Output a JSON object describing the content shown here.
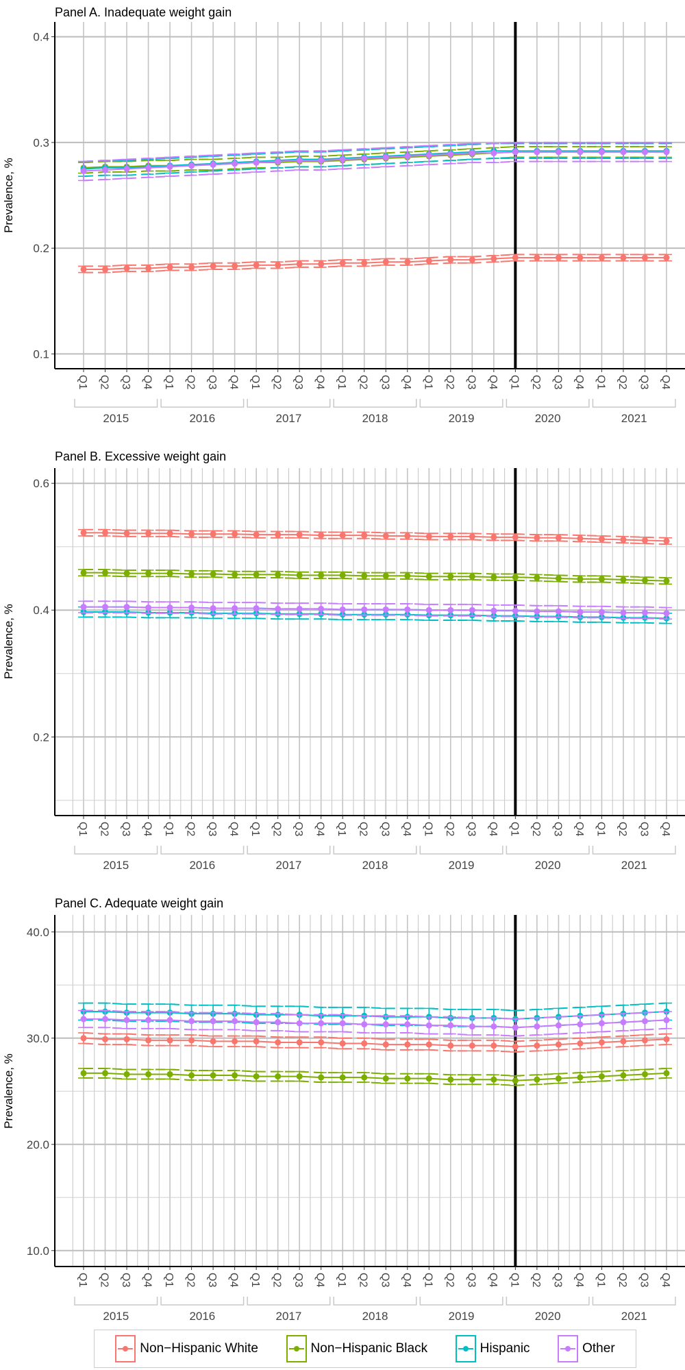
{
  "colors": {
    "Non-Hispanic White": "#F8766D",
    "Non-Hispanic Black": "#7CAE00",
    "Hispanic": "#00BFC4",
    "Other": "#C77CFF",
    "reference_line": "#000000"
  },
  "legend": {
    "items": [
      "Non−Hispanic White",
      "Non−Hispanic Black",
      "Hispanic",
      "Other"
    ],
    "position": "bottom"
  },
  "chart_data": [
    {
      "type": "line",
      "title": "Panel A. Inadequate weight gain",
      "ylabel": "Prevalence, %",
      "ylim": [
        0.086,
        0.414
      ],
      "yticks": [
        "0.1",
        "0.2",
        "0.3",
        "0.4"
      ],
      "ytick_values": [
        0.1,
        0.2,
        0.3,
        0.4
      ],
      "yminor": [],
      "grid": true,
      "quarters": [
        "Q1",
        "Q2",
        "Q3",
        "Q4"
      ],
      "years": [
        "2015",
        "2016",
        "2017",
        "2018",
        "2019",
        "2020",
        "2021"
      ],
      "reference_line_at": "2020 Q1",
      "series": [
        {
          "name": "Non-Hispanic White",
          "ci_halfwidth": 0.003,
          "values": [
            0.18,
            0.18,
            0.181,
            0.181,
            0.182,
            0.182,
            0.183,
            0.183,
            0.184,
            0.184,
            0.185,
            0.185,
            0.186,
            0.186,
            0.187,
            0.187,
            0.188,
            0.189,
            0.189,
            0.19,
            0.191,
            0.191,
            0.191,
            0.191,
            0.191,
            0.191,
            0.191,
            0.191
          ]
        },
        {
          "name": "Non-Hispanic Black",
          "ci_halfwidth": 0.005,
          "values": [
            0.276,
            0.277,
            0.277,
            0.278,
            0.278,
            0.279,
            0.279,
            0.28,
            0.281,
            0.281,
            0.282,
            0.282,
            0.283,
            0.284,
            0.285,
            0.286,
            0.287,
            0.288,
            0.289,
            0.29,
            0.291,
            0.291,
            0.291,
            0.291,
            0.291,
            0.291,
            0.291,
            0.291
          ]
        },
        {
          "name": "Hispanic",
          "ci_halfwidth": 0.007,
          "values": [
            0.275,
            0.276,
            0.276,
            0.277,
            0.278,
            0.279,
            0.28,
            0.281,
            0.282,
            0.283,
            0.284,
            0.284,
            0.285,
            0.286,
            0.287,
            0.288,
            0.289,
            0.29,
            0.291,
            0.292,
            0.292,
            0.292,
            0.292,
            0.292,
            0.292,
            0.292,
            0.292,
            0.292
          ]
        },
        {
          "name": "Other",
          "ci_halfwidth": 0.009,
          "values": [
            0.273,
            0.274,
            0.275,
            0.276,
            0.277,
            0.278,
            0.279,
            0.28,
            0.281,
            0.282,
            0.283,
            0.283,
            0.284,
            0.285,
            0.286,
            0.287,
            0.288,
            0.289,
            0.29,
            0.29,
            0.291,
            0.291,
            0.291,
            0.291,
            0.291,
            0.291,
            0.291,
            0.291
          ]
        }
      ]
    },
    {
      "type": "line",
      "title": "Panel B. Excessive weight gain",
      "ylabel": "Prevalence, %",
      "ylim": [
        0.076,
        0.624
      ],
      "yticks": [
        "0.2",
        "0.4",
        "0.6"
      ],
      "ytick_values": [
        0.2,
        0.4,
        0.6
      ],
      "yminor": [
        0.1,
        0.3,
        0.5
      ],
      "grid": true,
      "quarters": [
        "Q1",
        "Q2",
        "Q3",
        "Q4"
      ],
      "years": [
        "2015",
        "2016",
        "2017",
        "2018",
        "2019",
        "2020",
        "2021"
      ],
      "reference_line_at": "2020 Q1",
      "series": [
        {
          "name": "Non-Hispanic White",
          "ci_halfwidth": 0.005,
          "values": [
            0.522,
            0.522,
            0.521,
            0.521,
            0.521,
            0.52,
            0.52,
            0.52,
            0.519,
            0.519,
            0.519,
            0.518,
            0.518,
            0.518,
            0.517,
            0.517,
            0.516,
            0.516,
            0.516,
            0.515,
            0.515,
            0.514,
            0.514,
            0.513,
            0.512,
            0.511,
            0.51,
            0.509
          ]
        },
        {
          "name": "Non-Hispanic Black",
          "ci_halfwidth": 0.005,
          "values": [
            0.459,
            0.459,
            0.458,
            0.458,
            0.458,
            0.457,
            0.457,
            0.456,
            0.456,
            0.456,
            0.455,
            0.455,
            0.455,
            0.454,
            0.454,
            0.454,
            0.453,
            0.453,
            0.453,
            0.452,
            0.452,
            0.451,
            0.45,
            0.449,
            0.449,
            0.448,
            0.447,
            0.446
          ]
        },
        {
          "name": "Hispanic",
          "ci_halfwidth": 0.008,
          "values": [
            0.397,
            0.397,
            0.397,
            0.396,
            0.396,
            0.396,
            0.395,
            0.395,
            0.395,
            0.394,
            0.394,
            0.394,
            0.393,
            0.393,
            0.393,
            0.393,
            0.392,
            0.392,
            0.392,
            0.391,
            0.391,
            0.39,
            0.39,
            0.389,
            0.389,
            0.388,
            0.388,
            0.387
          ]
        },
        {
          "name": "Other",
          "ci_halfwidth": 0.009,
          "values": [
            0.405,
            0.405,
            0.405,
            0.404,
            0.404,
            0.404,
            0.403,
            0.403,
            0.403,
            0.402,
            0.402,
            0.402,
            0.401,
            0.401,
            0.401,
            0.401,
            0.4,
            0.4,
            0.4,
            0.399,
            0.399,
            0.398,
            0.398,
            0.397,
            0.397,
            0.396,
            0.396,
            0.395
          ]
        }
      ]
    },
    {
      "type": "line",
      "title": "Panel C. Adequate weight gain",
      "ylabel": "Prevalence, %",
      "ylim": [
        8.5,
        41.6
      ],
      "yticks": [
        "10.0",
        "20.0",
        "30.0",
        "40.0"
      ],
      "ytick_values": [
        10,
        20,
        30,
        40
      ],
      "yminor": [
        15,
        25,
        35
      ],
      "grid": true,
      "quarters": [
        "Q1",
        "Q2",
        "Q3",
        "Q4"
      ],
      "years": [
        "2015",
        "2016",
        "2017",
        "2018",
        "2019",
        "2020",
        "2021"
      ],
      "reference_line_at": "2020 Q1",
      "series": [
        {
          "name": "Non-Hispanic White",
          "ci_halfwidth": 0.5,
          "values": [
            30.0,
            29.9,
            29.9,
            29.8,
            29.8,
            29.8,
            29.7,
            29.7,
            29.7,
            29.6,
            29.6,
            29.6,
            29.5,
            29.5,
            29.4,
            29.4,
            29.4,
            29.3,
            29.3,
            29.3,
            29.2,
            29.3,
            29.4,
            29.5,
            29.6,
            29.7,
            29.8,
            29.9
          ]
        },
        {
          "name": "Non-Hispanic Black",
          "ci_halfwidth": 0.45,
          "values": [
            26.7,
            26.7,
            26.6,
            26.6,
            26.6,
            26.5,
            26.5,
            26.5,
            26.4,
            26.4,
            26.4,
            26.3,
            26.3,
            26.3,
            26.2,
            26.2,
            26.2,
            26.1,
            26.1,
            26.1,
            26.0,
            26.1,
            26.2,
            26.3,
            26.4,
            26.5,
            26.6,
            26.7
          ]
        },
        {
          "name": "Hispanic",
          "ci_halfwidth": 0.8,
          "values": [
            32.5,
            32.5,
            32.4,
            32.4,
            32.4,
            32.3,
            32.3,
            32.3,
            32.2,
            32.2,
            32.2,
            32.1,
            32.1,
            32.1,
            32.0,
            32.0,
            32.0,
            31.9,
            31.9,
            31.9,
            31.8,
            31.9,
            32.0,
            32.1,
            32.2,
            32.3,
            32.4,
            32.5
          ]
        },
        {
          "name": "Other",
          "ci_halfwidth": 0.8,
          "values": [
            31.8,
            31.8,
            31.7,
            31.7,
            31.7,
            31.6,
            31.6,
            31.6,
            31.5,
            31.5,
            31.4,
            31.4,
            31.4,
            31.3,
            31.3,
            31.3,
            31.2,
            31.2,
            31.1,
            31.1,
            31.0,
            31.1,
            31.2,
            31.3,
            31.4,
            31.5,
            31.6,
            31.7
          ]
        }
      ]
    }
  ]
}
